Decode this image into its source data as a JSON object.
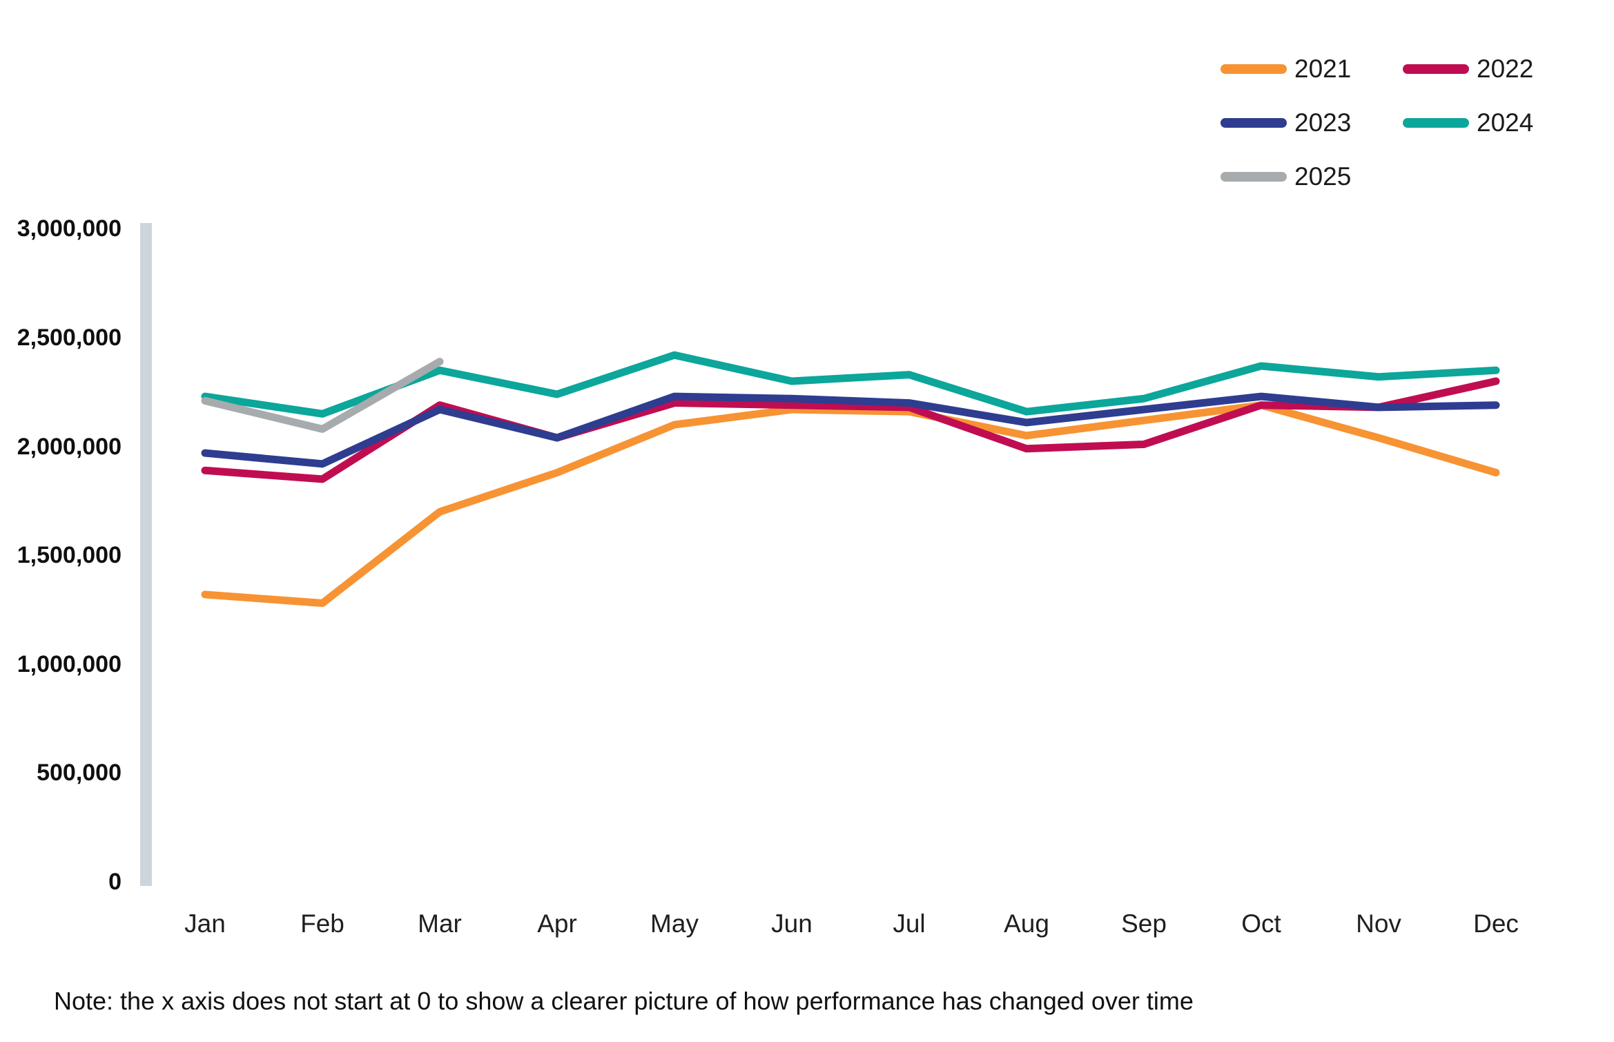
{
  "chart_data": {
    "type": "line",
    "title": "",
    "x_categories": [
      "Jan",
      "Feb",
      "Mar",
      "Apr",
      "May",
      "Jun",
      "Jul",
      "Aug",
      "Sep",
      "Oct",
      "Nov",
      "Dec"
    ],
    "ylim": [
      0,
      3000000
    ],
    "y_tick_step": 500000,
    "y_tick_labels": [
      "0",
      "500,000",
      "1,000,000",
      "1,500,000",
      "2,000,000",
      "2,500,000",
      "3,000,000"
    ],
    "grid": false,
    "legend_position": "top-right",
    "series": [
      {
        "name": "2021",
        "color": "#F79333",
        "values": [
          1320000,
          1280000,
          1700000,
          1880000,
          2100000,
          2170000,
          2160000,
          2050000,
          2120000,
          2190000,
          2040000,
          1880000
        ]
      },
      {
        "name": "2022",
        "color": "#C00D51",
        "values": [
          1890000,
          1850000,
          2190000,
          2040000,
          2200000,
          2190000,
          2180000,
          1990000,
          2010000,
          2190000,
          2180000,
          2300000
        ]
      },
      {
        "name": "2023",
        "color": "#2E3D90",
        "values": [
          1970000,
          1920000,
          2170000,
          2040000,
          2230000,
          2220000,
          2200000,
          2110000,
          2170000,
          2230000,
          2180000,
          2190000
        ]
      },
      {
        "name": "2024",
        "color": "#0CA69A",
        "values": [
          2230000,
          2150000,
          2350000,
          2240000,
          2420000,
          2300000,
          2330000,
          2160000,
          2220000,
          2370000,
          2320000,
          2350000
        ]
      },
      {
        "name": "2025",
        "color": "#A7ABAE",
        "values": [
          2210000,
          2080000,
          2390000
        ]
      }
    ]
  },
  "note": "Note: the x axis does not start at 0 to show a clearer picture of how performance has changed over time",
  "colors": {
    "axis_line": "#CDD5DC",
    "text": "#1A1A1A"
  }
}
